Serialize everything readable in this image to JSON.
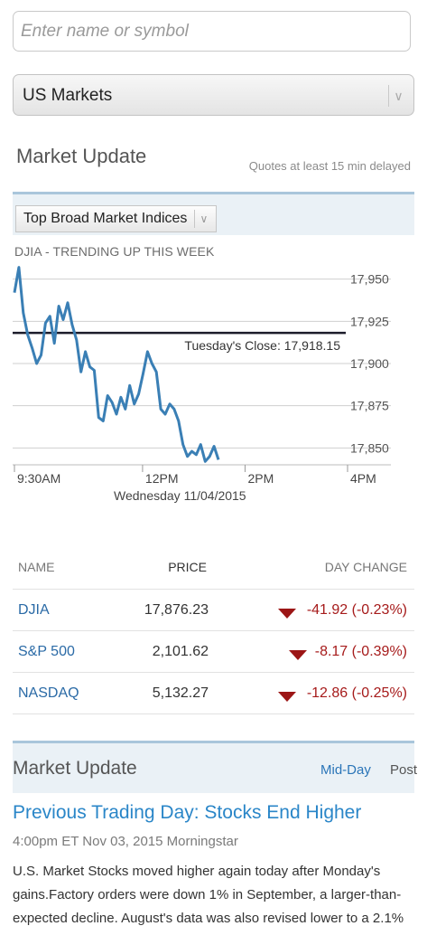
{
  "search": {
    "placeholder": "Enter name or symbol"
  },
  "market_select": {
    "value": "US Markets",
    "chevron": "chevron-down-icon"
  },
  "market_update": {
    "title": "Market Update",
    "delay_note": "Quotes at least 15 min delayed",
    "indices_select": "Top Broad Market Indices"
  },
  "chart_data": {
    "type": "line",
    "title": "DJIA - TRENDING UP THIS WEEK",
    "xlabel": "Wednesday 11/04/2015",
    "x_ticks": [
      "9:30AM",
      "12PM",
      "2PM",
      "4PM"
    ],
    "y_ticks": [
      "17,950",
      "17,925",
      "17,900",
      "17,875",
      "17,850"
    ],
    "ylim": [
      17840,
      17960
    ],
    "reference_line": {
      "label": "Tuesday's Close: 17,918.15",
      "value": 17918.15
    },
    "line_color": "#3a7fb5",
    "series": [
      {
        "x": [
          0,
          1,
          2,
          3,
          4,
          5,
          6,
          7,
          8,
          9,
          10,
          11,
          12,
          13,
          14,
          15,
          16,
          17,
          18,
          19,
          20,
          21,
          22,
          23,
          24,
          25,
          26,
          27,
          28,
          29,
          30,
          31,
          32,
          33,
          34,
          35,
          36,
          37,
          38,
          39,
          40,
          41,
          42,
          43,
          44,
          45,
          46
        ],
        "values": [
          17942,
          17957,
          17930,
          17917,
          17909,
          17900,
          17905,
          17924,
          17928,
          17912,
          17934,
          17926,
          17936,
          17923,
          17914,
          17895,
          17907,
          17898,
          17896,
          17868,
          17866,
          17881,
          17877,
          17870,
          17880,
          17873,
          17887,
          17876,
          17882,
          17894,
          17907,
          17900,
          17895,
          17873,
          17870,
          17876,
          17873,
          17866,
          17852,
          17845,
          17848,
          17846,
          17852,
          17842,
          17845,
          17851,
          17843
        ]
      }
    ]
  },
  "table": {
    "headers": {
      "name": "NAME",
      "price": "PRICE",
      "change": "DAY CHANGE"
    },
    "rows": [
      {
        "name": "DJIA",
        "price": "17,876.23",
        "change": "-41.92 (-0.23%)"
      },
      {
        "name": "S&P 500",
        "price": "2,101.62",
        "change": "-8.17 (-0.39%)"
      },
      {
        "name": "NASDAQ",
        "price": "5,132.27",
        "change": "-12.86 (-0.25%)"
      }
    ],
    "down_color": "#9c1616"
  },
  "news": {
    "title": "Market Update",
    "tabs": [
      "Mid-Day",
      "Post"
    ],
    "headline": "Previous Trading Day: Stocks End Higher",
    "byline": "4:00pm ET  Nov 03, 2015  Morningstar",
    "summary": "U.S. Market Stocks moved higher again today after Monday's gains.Factory orders were down 1% in September, a larger-than-expected decline. August's data was also revised lower to a 2.1%"
  }
}
